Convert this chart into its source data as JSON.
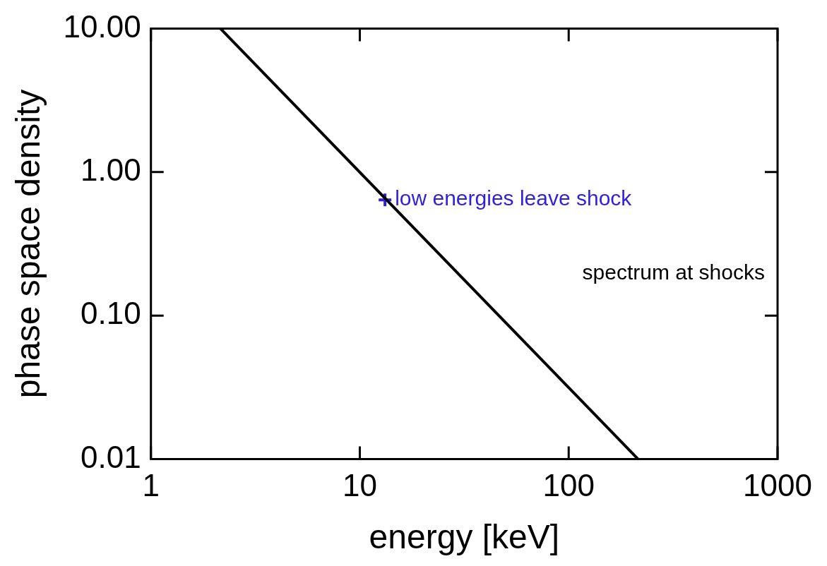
{
  "chart_data": {
    "type": "line",
    "xlabel": "energy [keV]",
    "ylabel": "phase space density",
    "log": "xy",
    "grid": false,
    "legend": false,
    "xlim": [
      1,
      1000
    ],
    "xticks": [
      1,
      10,
      100,
      1000
    ],
    "ylim": [
      0.01,
      10
    ],
    "yticks": [
      {
        "value": 0.01,
        "label": "0.01"
      },
      {
        "value": 0.1,
        "label": "0.10"
      },
      {
        "value": 1,
        "label": "1.00"
      },
      {
        "value": 10,
        "label": "10.00"
      }
    ],
    "series": [
      {
        "name": "spectrum at shocks",
        "type": "line",
        "color": "#000000",
        "x": [
          2.15,
          215
        ],
        "values": [
          10,
          0.01
        ]
      },
      {
        "name": "low energies leave shock",
        "type": "scatter",
        "marker": "cross",
        "color": "#2f1fe0",
        "x": [
          13.2
        ],
        "values": [
          0.64
        ]
      }
    ]
  }
}
